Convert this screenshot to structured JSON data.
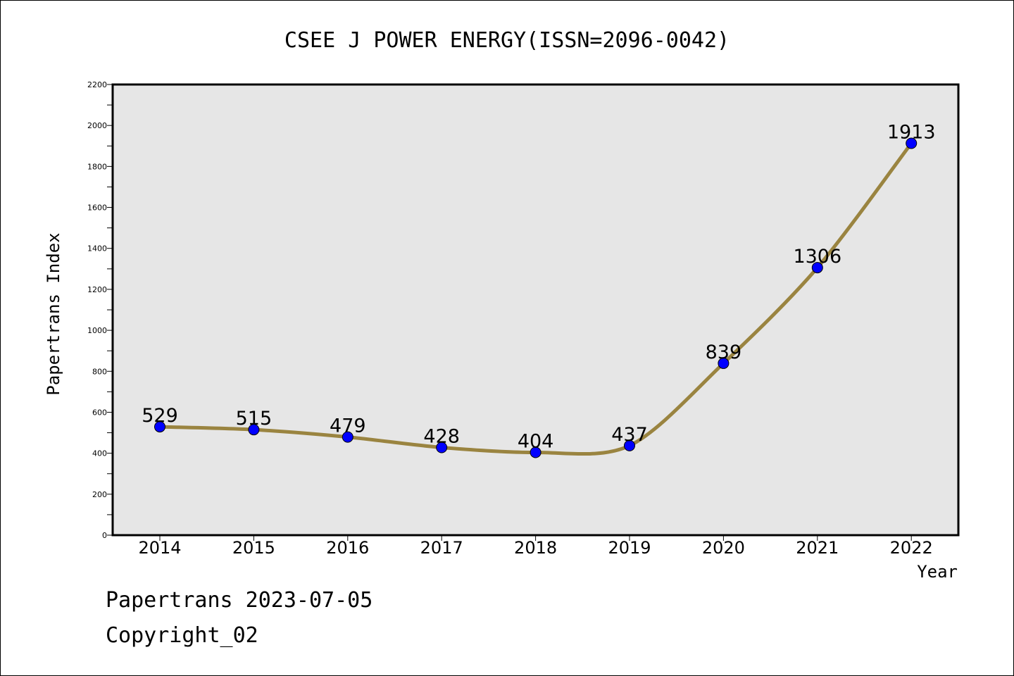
{
  "footer": {
    "line1": "Papertrans 2023-07-05",
    "line2": "Copyright_02"
  },
  "colors": {
    "plot_background": "#e6e6e6",
    "line": "#9a8440",
    "marker": "#0000ff"
  },
  "chart_data": {
    "type": "line",
    "title": "CSEE J POWER ENERGY(ISSN=2096-0042)",
    "xlabel": "Year",
    "ylabel": "Papertrans Index",
    "categories": [
      "2014",
      "2015",
      "2016",
      "2017",
      "2018",
      "2019",
      "2020",
      "2021",
      "2022"
    ],
    "values": [
      529,
      515,
      479,
      428,
      404,
      437,
      839,
      1306,
      1913
    ],
    "ylim": [
      0,
      2200
    ],
    "yticks": [
      "0",
      "200",
      "400",
      "600",
      "800",
      "1000",
      "1200",
      "1400",
      "1600",
      "1800",
      "2000",
      "2200"
    ],
    "grid": false,
    "data_labels": true
  }
}
